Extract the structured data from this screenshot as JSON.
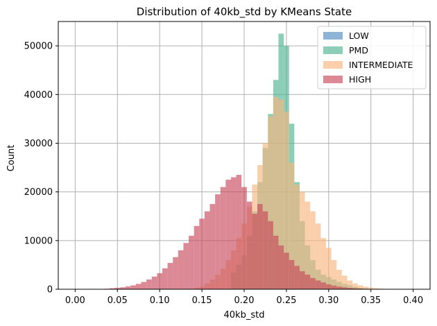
{
  "chart_data": {
    "type": "bar",
    "title": "Distribution of 40kb_std by KMeans State",
    "xlabel": "40kb_std",
    "ylabel": "Count",
    "xlim": [
      -0.02,
      0.42
    ],
    "ylim": [
      0,
      55000
    ],
    "xticks": [
      0.0,
      0.05,
      0.1,
      0.15,
      0.2,
      0.25,
      0.3,
      0.35,
      0.4
    ],
    "xtick_labels": [
      "0.00",
      "0.05",
      "0.10",
      "0.15",
      "0.20",
      "0.25",
      "0.30",
      "0.35",
      "0.40"
    ],
    "yticks": [
      0,
      10000,
      20000,
      30000,
      40000,
      50000
    ],
    "ytick_labels": [
      "0",
      "10000",
      "20000",
      "30000",
      "40000",
      "50000"
    ],
    "grid": true,
    "legend_position": "upper right",
    "bin_start": 0.0,
    "bin_width": 0.00625,
    "series": [
      {
        "name": "LOW",
        "color": "#6a9cc8",
        "alpha": 0.75,
        "values": [
          0,
          0,
          0,
          0,
          0,
          0,
          0,
          0,
          0,
          0,
          0,
          0,
          0,
          0,
          0,
          0,
          0,
          0,
          0,
          0,
          0,
          0,
          0,
          0,
          0,
          0,
          0,
          0,
          0,
          0,
          0,
          0,
          0,
          0,
          0,
          0,
          0,
          0,
          0,
          0,
          0,
          0,
          0,
          0,
          0,
          0,
          0,
          0,
          0,
          0,
          0,
          0,
          0,
          0,
          0,
          0,
          0,
          0,
          0,
          0,
          0,
          0,
          0,
          0,
          0,
          0
        ]
      },
      {
        "name": "PMD",
        "color": "#4fb390",
        "alpha": 0.65,
        "values": [
          0,
          0,
          0,
          0,
          0,
          0,
          0,
          0,
          0,
          0,
          0,
          0,
          0,
          0,
          0,
          0,
          0,
          0,
          0,
          0,
          0,
          0,
          0,
          0,
          0,
          0,
          0,
          0,
          0,
          0,
          0,
          0,
          0,
          0,
          0,
          0,
          0,
          0,
          0,
          0,
          0,
          0,
          0,
          0,
          0,
          0,
          0,
          0,
          0,
          0,
          0,
          0,
          0,
          0,
          0,
          0,
          0,
          0,
          0,
          0,
          0,
          0,
          0,
          0,
          0,
          0
        ]
      },
      {
        "name": "INTERMEDIATE",
        "color": "#f7b67e",
        "alpha": 0.65,
        "values": [
          0,
          0,
          0,
          0,
          0,
          0,
          0,
          0,
          0,
          0,
          0,
          0,
          0,
          0,
          0,
          0,
          0,
          0,
          0,
          0,
          0,
          0,
          0,
          0,
          0,
          0,
          0,
          0,
          0,
          0,
          0,
          0,
          0,
          0,
          0,
          0,
          0,
          0,
          0,
          0,
          0,
          0,
          0,
          0,
          0,
          0,
          0,
          0,
          0,
          0,
          0,
          0,
          0,
          0,
          0,
          0,
          0,
          0,
          0,
          0,
          0,
          0,
          0,
          0,
          0,
          0
        ]
      },
      {
        "name": "HIGH",
        "color": "#c74a5c",
        "alpha": 0.65,
        "values": [
          0,
          0,
          0,
          0,
          0,
          0,
          0,
          0,
          0,
          0,
          0,
          0,
          0,
          0,
          0,
          0,
          0,
          0,
          0,
          0,
          0,
          0,
          0,
          0,
          0,
          0,
          0,
          0,
          0,
          0,
          0,
          0,
          0,
          0,
          0,
          0,
          0,
          0,
          0,
          0,
          0,
          0,
          0,
          0,
          0,
          0,
          0,
          0,
          0,
          0,
          0,
          0,
          0,
          0,
          0,
          0,
          0,
          0,
          0,
          0,
          0,
          0,
          0,
          0,
          0,
          0
        ]
      }
    ],
    "series_points": {
      "PMD": [
        [
          0.1875,
          3500
        ],
        [
          0.19375,
          5000
        ],
        [
          0.2,
          7000
        ],
        [
          0.20625,
          11000
        ],
        [
          0.2125,
          16000
        ],
        [
          0.21875,
          22000
        ],
        [
          0.225,
          29000
        ],
        [
          0.23125,
          36000
        ],
        [
          0.2375,
          43000
        ],
        [
          0.24375,
          52500
        ],
        [
          0.25,
          50000
        ],
        [
          0.25625,
          34000
        ],
        [
          0.2625,
          22000
        ],
        [
          0.26875,
          14000
        ],
        [
          0.275,
          9000
        ],
        [
          0.28125,
          6000
        ],
        [
          0.2875,
          4000
        ],
        [
          0.29375,
          3000
        ],
        [
          0.3,
          2500
        ],
        [
          0.30625,
          2000
        ],
        [
          0.3125,
          1500
        ],
        [
          0.31875,
          1100
        ],
        [
          0.325,
          800
        ],
        [
          0.33125,
          500
        ],
        [
          0.3375,
          300
        ],
        [
          0.34375,
          150
        ]
      ],
      "INTERMEDIATE": [
        [
          0.14375,
          300
        ],
        [
          0.15,
          600
        ],
        [
          0.15625,
          1200
        ],
        [
          0.1625,
          2000
        ],
        [
          0.16875,
          3000
        ],
        [
          0.175,
          4200
        ],
        [
          0.18125,
          6000
        ],
        [
          0.1875,
          8000
        ],
        [
          0.19375,
          10500
        ],
        [
          0.2,
          13500
        ],
        [
          0.20625,
          17000
        ],
        [
          0.2125,
          21500
        ],
        [
          0.21875,
          25500
        ],
        [
          0.225,
          30000
        ],
        [
          0.23125,
          35500
        ],
        [
          0.2375,
          39500
        ],
        [
          0.24375,
          39000
        ],
        [
          0.25,
          36500
        ],
        [
          0.25625,
          26000
        ],
        [
          0.2625,
          21500
        ],
        [
          0.26875,
          20000
        ],
        [
          0.275,
          18000
        ],
        [
          0.28125,
          16000
        ],
        [
          0.2875,
          13500
        ],
        [
          0.29375,
          10500
        ],
        [
          0.3,
          8500
        ],
        [
          0.30625,
          6000
        ],
        [
          0.3125,
          4000
        ],
        [
          0.31875,
          2800
        ],
        [
          0.325,
          1800
        ],
        [
          0.33125,
          1200
        ],
        [
          0.3375,
          800
        ],
        [
          0.34375,
          550
        ],
        [
          0.35,
          350
        ],
        [
          0.35625,
          200
        ],
        [
          0.3625,
          120
        ],
        [
          0.36875,
          70
        ],
        [
          0.375,
          40
        ]
      ],
      "HIGH": [
        [
          0.0375,
          100
        ],
        [
          0.04375,
          200
        ],
        [
          0.05,
          300
        ],
        [
          0.05625,
          400
        ],
        [
          0.0625,
          600
        ],
        [
          0.06875,
          800
        ],
        [
          0.075,
          1100
        ],
        [
          0.08125,
          1500
        ],
        [
          0.0875,
          2000
        ],
        [
          0.09375,
          2600
        ],
        [
          0.1,
          3300
        ],
        [
          0.10625,
          4300
        ],
        [
          0.1125,
          5400
        ],
        [
          0.11875,
          6600
        ],
        [
          0.125,
          8000
        ],
        [
          0.13125,
          9500
        ],
        [
          0.1375,
          11000
        ],
        [
          0.14375,
          13000
        ],
        [
          0.15,
          14500
        ],
        [
          0.15625,
          16000
        ],
        [
          0.1625,
          17500
        ],
        [
          0.16875,
          19500
        ],
        [
          0.175,
          21000
        ],
        [
          0.18125,
          22500
        ],
        [
          0.1875,
          23000
        ],
        [
          0.19375,
          23500
        ],
        [
          0.2,
          21000
        ],
        [
          0.20625,
          18000
        ],
        [
          0.2125,
          15500
        ],
        [
          0.21875,
          17500
        ],
        [
          0.225,
          16000
        ],
        [
          0.23125,
          14000
        ],
        [
          0.2375,
          11000
        ],
        [
          0.24375,
          9000
        ],
        [
          0.25,
          7500
        ],
        [
          0.25625,
          6000
        ],
        [
          0.2625,
          4800
        ],
        [
          0.26875,
          3700
        ],
        [
          0.275,
          3000
        ],
        [
          0.28125,
          2300
        ],
        [
          0.2875,
          1800
        ],
        [
          0.29375,
          1400
        ],
        [
          0.3,
          1000
        ],
        [
          0.30625,
          750
        ],
        [
          0.3125,
          550
        ],
        [
          0.31875,
          400
        ],
        [
          0.325,
          280
        ],
        [
          0.33125,
          200
        ],
        [
          0.3375,
          140
        ],
        [
          0.34375,
          100
        ],
        [
          0.35,
          70
        ],
        [
          0.35625,
          50
        ],
        [
          0.3625,
          35
        ],
        [
          0.36875,
          25
        ],
        [
          0.375,
          15
        ],
        [
          0.38125,
          10
        ]
      ]
    }
  }
}
